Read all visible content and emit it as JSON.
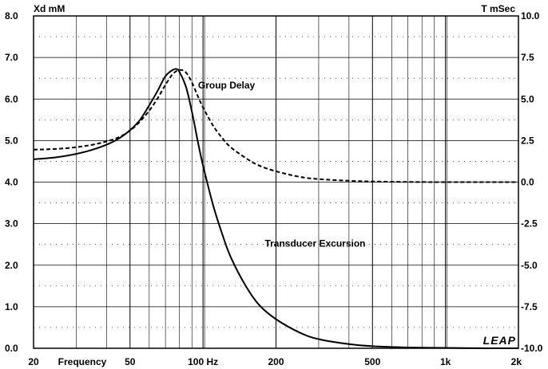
{
  "chart_data": {
    "type": "line",
    "xlabel": "Frequency",
    "x_scale": "log",
    "xlim": [
      20,
      2000
    ],
    "x_ticks": [
      {
        "value": 20,
        "label": "20"
      },
      {
        "value": 50,
        "label": "50"
      },
      {
        "value": 100,
        "label": "100 Hz"
      },
      {
        "value": 200,
        "label": "200"
      },
      {
        "value": 500,
        "label": "500"
      },
      {
        "value": 1000,
        "label": "1k"
      },
      {
        "value": 2000,
        "label": "2k"
      }
    ],
    "y_left": {
      "label": "Xd mM",
      "ylim": [
        0,
        8
      ],
      "ticks": [
        "0.0",
        "1.0",
        "2.0",
        "3.0",
        "4.0",
        "5.0",
        "6.0",
        "7.0",
        "8.0"
      ]
    },
    "y_right": {
      "label": "T mSec",
      "ylim": [
        -10,
        10
      ],
      "ticks": [
        "-10.0",
        "-7.5",
        "-5.0",
        "-2.5",
        "0.0",
        "2.5",
        "5.0",
        "7.5",
        "10.0"
      ]
    },
    "grid": true,
    "series": [
      {
        "name": "Transducer Excursion",
        "axis": "left",
        "style": "solid",
        "color": "#000000",
        "x": [
          20,
          25,
          30,
          35,
          40,
          45,
          50,
          55,
          60,
          65,
          70,
          75,
          78,
          80,
          85,
          90,
          95,
          100,
          110,
          120,
          130,
          150,
          170,
          200,
          250,
          300,
          400,
          500,
          700,
          1000,
          1500,
          2000
        ],
        "y": [
          4.55,
          4.6,
          4.68,
          4.78,
          4.9,
          5.05,
          5.25,
          5.5,
          5.85,
          6.2,
          6.55,
          6.7,
          6.72,
          6.65,
          6.3,
          5.7,
          5.0,
          4.4,
          3.45,
          2.75,
          2.2,
          1.5,
          1.05,
          0.7,
          0.38,
          0.22,
          0.1,
          0.05,
          0.02,
          0.01,
          0.0,
          0.0
        ]
      },
      {
        "name": "Group Delay",
        "axis": "right",
        "style": "dashed",
        "color": "#000000",
        "x": [
          20,
          25,
          30,
          35,
          40,
          45,
          50,
          55,
          60,
          65,
          70,
          75,
          80,
          85,
          90,
          95,
          100,
          110,
          120,
          130,
          150,
          170,
          200,
          250,
          300,
          400,
          500,
          700,
          1000,
          1500,
          2000
        ],
        "y": [
          1.95,
          2.0,
          2.1,
          2.25,
          2.45,
          2.7,
          3.1,
          3.65,
          4.3,
          5.05,
          5.85,
          6.5,
          6.75,
          6.6,
          6.0,
          5.2,
          4.5,
          3.4,
          2.65,
          2.1,
          1.45,
          1.0,
          0.65,
          0.32,
          0.18,
          0.08,
          0.04,
          0.01,
          0.0,
          0.0,
          0.0
        ]
      }
    ],
    "annotations": [
      {
        "text": "Group Delay",
        "x": 125,
        "y_left": 6.25
      },
      {
        "text": "Transducer Excursion",
        "x": 290,
        "y_left": 2.45
      }
    ],
    "logo": "LEAP"
  }
}
